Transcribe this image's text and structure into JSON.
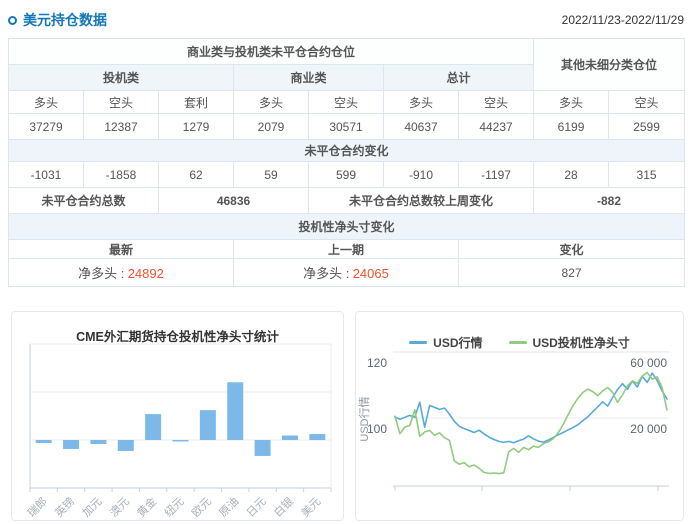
{
  "header": {
    "title": "美元持仓数据",
    "date_range": "2022/11/23-2022/11/29"
  },
  "colors": {
    "accent_blue": "#1980c4",
    "positive_red": "#f0512f",
    "negative_green": "#10a26d",
    "bar_blue": "#7db9e8",
    "line_blue": "#58abd8",
    "line_green": "#90cb7e"
  },
  "position_table": {
    "group_header": "商业类与投机类未平仓合约仓位",
    "other_header": "其他未细分类仓位",
    "categories": [
      {
        "label": "投机类",
        "span": 3
      },
      {
        "label": "商业类",
        "span": 2
      },
      {
        "label": "总计",
        "span": 2
      }
    ],
    "col_headers": [
      "多头",
      "空头",
      "套利",
      "多头",
      "空头",
      "多头",
      "空头",
      "多头",
      "空头"
    ],
    "open_interest_values": [
      37279,
      12387,
      1279,
      2079,
      30571,
      40637,
      44237,
      6199,
      2599
    ],
    "change_section_title": "未平仓合约变化",
    "change_values": [
      -1031,
      -1858,
      62,
      59,
      599,
      -910,
      -1197,
      28,
      315
    ],
    "totals": {
      "total_label": "未平仓合约总数",
      "total_value": "46836",
      "change_label": "未平仓合约总数较上周变化",
      "change_value": "-882"
    },
    "net_section_title": "投机性净头寸变化",
    "net_headers": [
      "最新",
      "上一期",
      "变化"
    ],
    "net": {
      "latest_label": "净多头 :",
      "latest_value": "24892",
      "prev_label": "净多头 :",
      "prev_value": "24065",
      "change_value": "827"
    }
  },
  "chart_data": [
    {
      "type": "bar",
      "title": "CME外汇期货持仓投机性净头寸统计",
      "categories": [
        "瑞郎",
        "英镑",
        "加元",
        "澳元",
        "黄金",
        "纽元",
        "欧元",
        "原油",
        "日元",
        "白银",
        "美元"
      ],
      "values": [
        -12400,
        -37300,
        -16600,
        -45600,
        107900,
        -6200,
        124500,
        240600,
        -66400,
        18700,
        24892
      ],
      "xlabel": "",
      "ylabel": "",
      "ylim": [
        -200000,
        400000
      ],
      "grid": true,
      "axis_tick_labels_visible": false,
      "bar_color": "#7db9e8"
    },
    {
      "type": "line",
      "title": "",
      "legend": [
        "USD行情",
        "USD投机性净头寸"
      ],
      "legend_position": "top",
      "ylabel_left": "USD行情",
      "left_axis_ticks": [
        "120",
        "100"
      ],
      "right_axis_ticks": [
        "60 000",
        "20 000"
      ],
      "left_axis_range_at_gridlines": [
        120,
        100
      ],
      "right_axis_range_at_gridlines": [
        60000,
        20000
      ],
      "x_tick_labels_visible": false,
      "series": [
        {
          "name": "USD行情",
          "axis": "left",
          "color": "#58abd8",
          "values": [
            100.3,
            99.6,
            100.2,
            100.8,
            100.2,
            104.8,
            97.2,
            103.8,
            103.2,
            102.6,
            103.0,
            101.2,
            99.0,
            97.5,
            96.8,
            96.2,
            95.6,
            96.3,
            95.2,
            94.2,
            93.5,
            92.9,
            92.6,
            92.9,
            92.5,
            93.1,
            93.6,
            94.6,
            93.7,
            93.0,
            92.7,
            93.3,
            94.1,
            94.9,
            95.6,
            96.4,
            97.1,
            98.0,
            99.2,
            100.4,
            101.9,
            103.4,
            104.9,
            103.6,
            106.2,
            108.6,
            110.4,
            108.7,
            111.2,
            109.4,
            112.6,
            110.8,
            113.6,
            111.4,
            108.2,
            105.8
          ]
        },
        {
          "name": "USD投机性净头寸",
          "axis": "right",
          "color": "#90cb7e",
          "values": [
            21000,
            10500,
            14500,
            15500,
            25000,
            9000,
            11500,
            12500,
            9500,
            11000,
            8000,
            6500,
            -6000,
            -8000,
            -7000,
            -9500,
            -8500,
            -10500,
            -13000,
            -13600,
            -13400,
            -13700,
            -13200,
            -500,
            1500,
            -800,
            2200,
            800,
            3000,
            2200,
            4500,
            5500,
            7500,
            11000,
            16000,
            22000,
            27500,
            32000,
            35500,
            37500,
            36000,
            33500,
            36500,
            38500,
            35500,
            29500,
            34000,
            39500,
            42500,
            41000,
            45500,
            47500,
            43500,
            45000,
            38500,
            24892
          ]
        }
      ]
    }
  ]
}
